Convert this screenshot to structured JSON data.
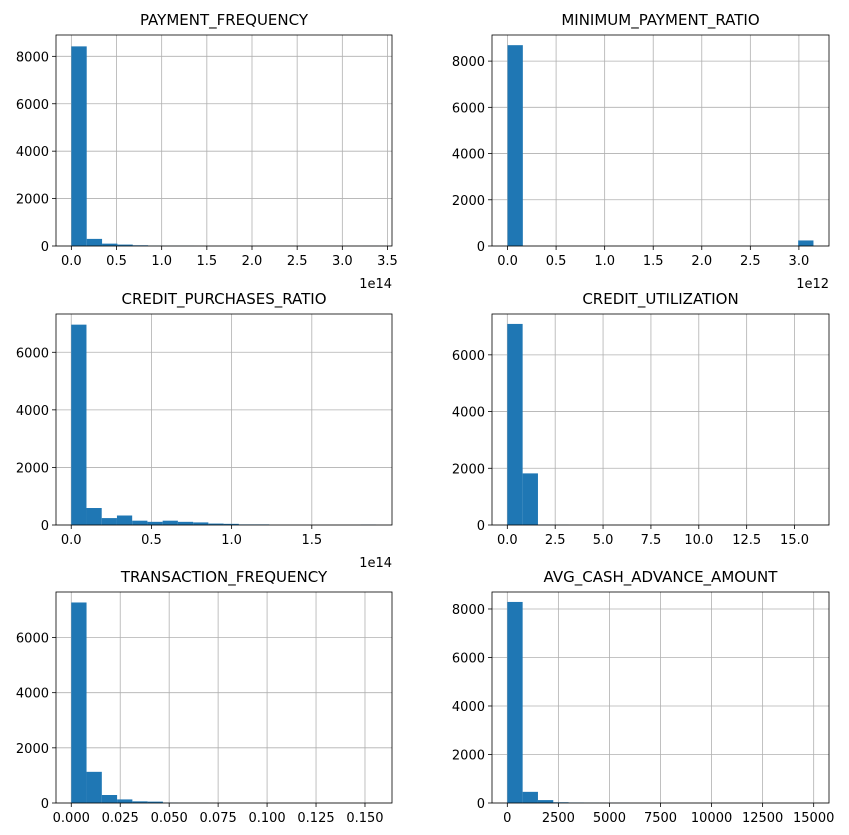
{
  "colors": {
    "bar": "#1f77b4",
    "grid": "#b0b0b0",
    "axis": "#000000"
  },
  "chart_data": [
    {
      "type": "bar",
      "title": "PAYMENT_FREQUENCY",
      "grid": true,
      "xlim": [
        -0.17,
        3.55
      ],
      "ylim": [
        0,
        8900
      ],
      "xticks": [
        0,
        0.5,
        1,
        1.5,
        2,
        2.5,
        3,
        3.5
      ],
      "xtick_labels": [
        "0.0",
        "0.5",
        "1.0",
        "1.5",
        "2.0",
        "2.5",
        "3.0",
        "3.5"
      ],
      "yticks": [
        0,
        2000,
        4000,
        6000,
        8000
      ],
      "ytick_labels": [
        "0",
        "2000",
        "4000",
        "6000",
        "8000"
      ],
      "x_offset_label": "1e14",
      "bin_edges": [
        0,
        0.17,
        0.34,
        0.51,
        0.68,
        0.85,
        1.02,
        1.19,
        1.36,
        1.53,
        1.7,
        1.87,
        2.04,
        2.21,
        2.38,
        2.55,
        2.72,
        2.89,
        3.06,
        3.23,
        3.4
      ],
      "counts": [
        8420,
        300,
        100,
        60,
        30,
        10,
        5,
        5,
        0,
        0,
        0,
        0,
        0,
        0,
        0,
        0,
        0,
        0,
        0,
        3
      ]
    },
    {
      "type": "bar",
      "title": "MINIMUM_PAYMENT_RATIO",
      "grid": true,
      "xlim": [
        -0.16,
        3.31
      ],
      "ylim": [
        0,
        9130
      ],
      "xticks": [
        0,
        0.5,
        1,
        1.5,
        2,
        2.5,
        3
      ],
      "xtick_labels": [
        "0.0",
        "0.5",
        "1.0",
        "1.5",
        "2.0",
        "2.5",
        "3.0"
      ],
      "yticks": [
        0,
        2000,
        4000,
        6000,
        8000
      ],
      "ytick_labels": [
        "0",
        "2000",
        "4000",
        "6000",
        "8000"
      ],
      "x_offset_label": "1e12",
      "bin_edges": [
        0,
        0.1575,
        0.315,
        0.4725,
        0.63,
        0.7875,
        0.945,
        1.1025,
        1.26,
        1.4175,
        1.575,
        1.7325,
        1.89,
        2.0475,
        2.205,
        2.3625,
        2.52,
        2.6775,
        2.835,
        2.9925,
        3.15
      ],
      "counts": [
        8690,
        0,
        0,
        0,
        0,
        0,
        0,
        0,
        0,
        0,
        0,
        0,
        0,
        0,
        0,
        0,
        0,
        0,
        0,
        240
      ]
    },
    {
      "type": "bar",
      "title": "CREDIT_PURCHASES_RATIO",
      "grid": true,
      "xlim": [
        -0.095,
        2.0
      ],
      "ylim": [
        0,
        7330
      ],
      "xticks": [
        0,
        0.5,
        1,
        1.5
      ],
      "xtick_labels": [
        "0.0",
        "0.5",
        "1.0",
        "1.5"
      ],
      "yticks": [
        0,
        2000,
        4000,
        6000
      ],
      "ytick_labels": [
        "0",
        "2000",
        "4000",
        "6000"
      ],
      "x_offset_label": "1e14",
      "bin_edges": [
        0,
        0.095,
        0.19,
        0.285,
        0.38,
        0.475,
        0.57,
        0.665,
        0.76,
        0.855,
        0.95,
        1.045,
        1.14,
        1.235,
        1.33,
        1.425,
        1.52,
        1.615,
        1.71,
        1.805,
        1.9
      ],
      "counts": [
        6960,
        590,
        240,
        330,
        150,
        110,
        150,
        110,
        90,
        50,
        40,
        20,
        20,
        0,
        0,
        0,
        0,
        0,
        0,
        10
      ]
    },
    {
      "type": "bar",
      "title": "CREDIT_UTILIZATION",
      "grid": true,
      "xlim": [
        -0.8,
        16.8
      ],
      "ylim": [
        0,
        7440
      ],
      "xticks": [
        0,
        2.5,
        5,
        7.5,
        10,
        12.5,
        15
      ],
      "xtick_labels": [
        "0.0",
        "2.5",
        "5.0",
        "7.5",
        "10.0",
        "12.5",
        "15.0"
      ],
      "yticks": [
        0,
        2000,
        4000,
        6000
      ],
      "ytick_labels": [
        "0",
        "2000",
        "4000",
        "6000"
      ],
      "bin_edges": [
        0,
        0.8,
        1.6,
        2.4,
        3.2,
        4.0,
        4.8,
        5.6,
        6.4,
        7.2,
        8.0,
        8.8,
        9.6,
        10.4,
        11.2,
        12.0,
        12.8,
        13.6,
        14.4,
        15.2,
        16.0
      ],
      "counts": [
        7090,
        1820,
        10,
        5,
        0,
        0,
        0,
        0,
        0,
        0,
        0,
        0,
        0,
        0,
        0,
        0,
        0,
        0,
        0,
        2
      ]
    },
    {
      "type": "bar",
      "title": "TRANSACTION_FREQUENCY",
      "grid": true,
      "xlim": [
        -0.0078,
        0.1638
      ],
      "ylim": [
        0,
        7650
      ],
      "xticks": [
        0,
        0.025,
        0.05,
        0.075,
        0.1,
        0.125,
        0.15
      ],
      "xtick_labels": [
        "0.000",
        "0.025",
        "0.050",
        "0.075",
        "0.100",
        "0.125",
        "0.150"
      ],
      "yticks": [
        0,
        2000,
        4000,
        6000
      ],
      "ytick_labels": [
        "0",
        "2000",
        "4000",
        "6000"
      ],
      "bin_edges": [
        0,
        0.0078,
        0.0156,
        0.0234,
        0.0312,
        0.039,
        0.0468,
        0.0546,
        0.0624,
        0.0702,
        0.078,
        0.0858,
        0.0936,
        0.1014,
        0.1092,
        0.117,
        0.1248,
        0.1326,
        0.1404,
        0.1482,
        0.156
      ],
      "counts": [
        7270,
        1130,
        290,
        130,
        60,
        50,
        10,
        5,
        5,
        0,
        0,
        0,
        0,
        0,
        0,
        0,
        0,
        0,
        0,
        2
      ]
    },
    {
      "type": "bar",
      "title": "AVG_CASH_ADVANCE_AMOUNT",
      "grid": true,
      "xlim": [
        -750,
        15750
      ],
      "ylim": [
        0,
        8700
      ],
      "xticks": [
        0,
        2500,
        5000,
        7500,
        10000,
        12500,
        15000
      ],
      "xtick_labels": [
        "0",
        "2500",
        "5000",
        "7500",
        "10000",
        "12500",
        "15000"
      ],
      "yticks": [
        0,
        2000,
        4000,
        6000,
        8000
      ],
      "ytick_labels": [
        "0",
        "2000",
        "4000",
        "6000",
        "8000"
      ],
      "bin_edges": [
        0,
        750,
        1500,
        2250,
        3000,
        3750,
        4500,
        5250,
        6000,
        6750,
        7500,
        8250,
        9000,
        9750,
        10500,
        11250,
        12000,
        12750,
        13500,
        14250,
        15000
      ],
      "counts": [
        8290,
        460,
        120,
        30,
        20,
        10,
        5,
        5,
        0,
        0,
        0,
        0,
        0,
        0,
        0,
        0,
        0,
        0,
        0,
        2
      ]
    }
  ]
}
